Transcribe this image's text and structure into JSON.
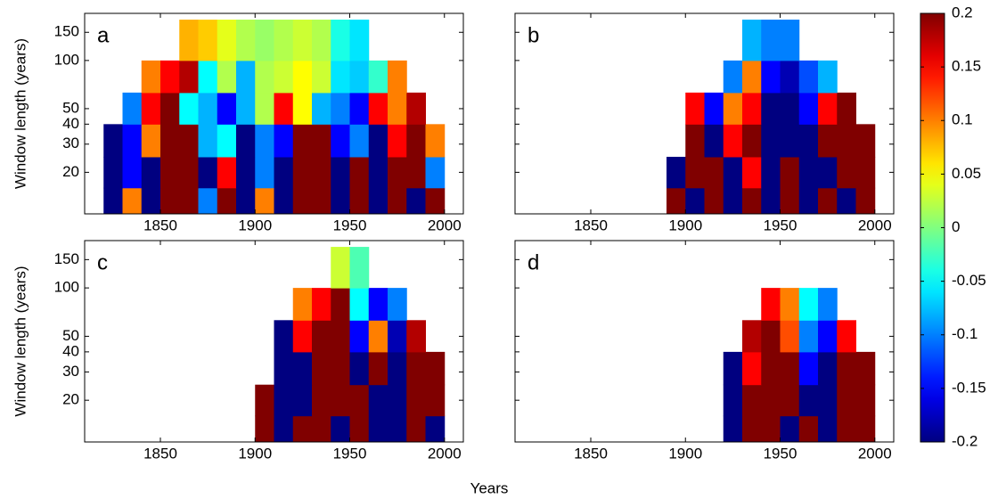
{
  "figure": {
    "xlabel": "Years",
    "colorbar": {
      "clim": [
        -0.2,
        0.2
      ],
      "ticks": [
        0.2,
        0.15,
        0.1,
        0.05,
        0,
        -0.05,
        -0.1,
        -0.15,
        -0.2
      ],
      "colormap": "jet"
    }
  },
  "chart_data": [
    {
      "type": "heatmap",
      "label": "a",
      "ylabel": "Window length (years)",
      "x": [
        1815,
        1825,
        1835,
        1845,
        1855,
        1865,
        1875,
        1885,
        1895,
        1905,
        1915,
        1925,
        1935,
        1945,
        1955,
        1965,
        1975,
        1985,
        1995,
        2005
      ],
      "y_edges": [
        10,
        16,
        25,
        40,
        63,
        100,
        180
      ],
      "values": [
        [
          null,
          -0.2,
          0.1,
          -0.2,
          0.2,
          0.2,
          -0.1,
          0.2,
          -0.2,
          0.1,
          -0.2,
          0.2,
          0.2,
          -0.2,
          0.2,
          -0.2,
          0.2,
          -0.2,
          0.2,
          null
        ],
        [
          null,
          -0.2,
          -0.15,
          -0.2,
          0.2,
          0.2,
          -0.2,
          0.15,
          -0.2,
          -0.1,
          -0.2,
          0.2,
          0.2,
          -0.2,
          0.2,
          -0.2,
          0.2,
          0.2,
          -0.1,
          null
        ],
        [
          null,
          -0.2,
          -0.15,
          0.1,
          0.2,
          0.2,
          -0.08,
          -0.05,
          -0.2,
          -0.1,
          -0.15,
          0.2,
          0.2,
          -0.15,
          -0.1,
          -0.2,
          0.15,
          0.2,
          0.1,
          null
        ],
        [
          null,
          null,
          -0.1,
          0.15,
          0.2,
          -0.05,
          -0.08,
          -0.15,
          -0.08,
          0.02,
          0.15,
          0.05,
          -0.08,
          -0.1,
          -0.15,
          0.15,
          0.1,
          0.18,
          null,
          null
        ],
        [
          null,
          null,
          null,
          0.1,
          0.15,
          0.18,
          -0.05,
          0.02,
          -0.08,
          0.02,
          0.03,
          0.05,
          0.03,
          -0.06,
          -0.07,
          -0.03,
          0.1,
          null,
          null,
          null
        ],
        [
          null,
          null,
          null,
          null,
          null,
          0.08,
          0.07,
          0.04,
          0.02,
          0.01,
          0.02,
          0.03,
          0.02,
          -0.04,
          -0.06,
          null,
          null,
          null,
          null,
          null
        ]
      ],
      "xlim": [
        1810,
        2010
      ],
      "ylim": [
        11,
        197
      ],
      "yscale": "log",
      "xticks": [
        1850,
        1900,
        1950,
        2000
      ],
      "yticks": [
        20,
        30,
        40,
        50,
        100,
        150
      ]
    },
    {
      "type": "heatmap",
      "label": "b",
      "x": [
        1815,
        1825,
        1835,
        1845,
        1855,
        1865,
        1875,
        1885,
        1895,
        1905,
        1915,
        1925,
        1935,
        1945,
        1955,
        1965,
        1975,
        1985,
        1995,
        2005
      ],
      "y_edges": [
        10,
        16,
        25,
        40,
        63,
        100,
        180
      ],
      "values": [
        [
          null,
          null,
          null,
          null,
          null,
          null,
          null,
          null,
          0.2,
          -0.2,
          0.2,
          -0.2,
          0.2,
          -0.2,
          0.2,
          -0.2,
          0.2,
          -0.2,
          0.2,
          null
        ],
        [
          null,
          null,
          null,
          null,
          null,
          null,
          null,
          null,
          -0.2,
          0.2,
          0.2,
          -0.2,
          0.15,
          -0.2,
          0.2,
          -0.2,
          -0.2,
          0.2,
          0.2,
          null
        ],
        [
          null,
          null,
          null,
          null,
          null,
          null,
          null,
          null,
          null,
          0.2,
          -0.2,
          0.15,
          0.2,
          -0.2,
          -0.2,
          -0.2,
          0.2,
          0.2,
          0.2,
          null
        ],
        [
          null,
          null,
          null,
          null,
          null,
          null,
          null,
          null,
          null,
          0.15,
          -0.15,
          0.1,
          0.15,
          -0.2,
          -0.2,
          -0.15,
          0.15,
          0.2,
          null,
          null
        ],
        [
          null,
          null,
          null,
          null,
          null,
          null,
          null,
          null,
          null,
          null,
          null,
          -0.1,
          0.1,
          -0.15,
          -0.18,
          -0.12,
          -0.08,
          null,
          null,
          null
        ],
        [
          null,
          null,
          null,
          null,
          null,
          null,
          null,
          null,
          null,
          null,
          null,
          null,
          -0.08,
          -0.1,
          -0.1,
          null,
          null,
          null,
          null,
          null
        ]
      ],
      "xlim": [
        1810,
        2010
      ],
      "ylim": [
        11,
        197
      ],
      "yscale": "log",
      "xticks": [
        1850,
        1900,
        1950,
        2000
      ],
      "yticks": [
        20,
        30,
        40,
        50,
        100,
        150
      ]
    },
    {
      "type": "heatmap",
      "label": "c",
      "ylabel": "Window length (years)",
      "x": [
        1815,
        1825,
        1835,
        1845,
        1855,
        1865,
        1875,
        1885,
        1895,
        1905,
        1915,
        1925,
        1935,
        1945,
        1955,
        1965,
        1975,
        1985,
        1995,
        2005
      ],
      "y_edges": [
        10,
        16,
        25,
        40,
        63,
        100,
        180
      ],
      "values": [
        [
          null,
          null,
          null,
          null,
          null,
          null,
          null,
          null,
          null,
          0.2,
          -0.2,
          0.2,
          0.2,
          -0.2,
          0.2,
          -0.2,
          -0.2,
          0.2,
          -0.2,
          null
        ],
        [
          null,
          null,
          null,
          null,
          null,
          null,
          null,
          null,
          null,
          0.2,
          -0.2,
          -0.2,
          0.2,
          0.2,
          0.2,
          -0.2,
          -0.2,
          0.2,
          0.2,
          null
        ],
        [
          null,
          null,
          null,
          null,
          null,
          null,
          null,
          null,
          null,
          null,
          -0.2,
          -0.2,
          0.2,
          0.2,
          -0.2,
          0.2,
          -0.2,
          0.2,
          0.2,
          null
        ],
        [
          null,
          null,
          null,
          null,
          null,
          null,
          null,
          null,
          null,
          null,
          -0.2,
          0.15,
          0.2,
          0.2,
          -0.15,
          0.1,
          -0.18,
          0.18,
          null,
          null
        ],
        [
          null,
          null,
          null,
          null,
          null,
          null,
          null,
          null,
          null,
          null,
          null,
          0.1,
          0.15,
          0.2,
          -0.05,
          -0.15,
          -0.1,
          null,
          null,
          null
        ],
        [
          null,
          null,
          null,
          null,
          null,
          null,
          null,
          null,
          null,
          null,
          null,
          null,
          null,
          0.03,
          -0.02,
          null,
          null,
          null,
          null,
          null
        ]
      ],
      "xlim": [
        1810,
        2010
      ],
      "ylim": [
        11,
        197
      ],
      "yscale": "log",
      "xticks": [
        1850,
        1900,
        1950,
        2000
      ],
      "yticks": [
        20,
        30,
        40,
        50,
        100,
        150
      ]
    },
    {
      "type": "heatmap",
      "label": "d",
      "x": [
        1815,
        1825,
        1835,
        1845,
        1855,
        1865,
        1875,
        1885,
        1895,
        1905,
        1915,
        1925,
        1935,
        1945,
        1955,
        1965,
        1975,
        1985,
        1995,
        2005
      ],
      "y_edges": [
        10,
        16,
        25,
        40,
        63,
        100,
        180
      ],
      "values": [
        [
          null,
          null,
          null,
          null,
          null,
          null,
          null,
          null,
          null,
          null,
          null,
          -0.2,
          0.2,
          0.2,
          -0.2,
          0.2,
          -0.2,
          0.2,
          0.2,
          null
        ],
        [
          null,
          null,
          null,
          null,
          null,
          null,
          null,
          null,
          null,
          null,
          null,
          -0.2,
          0.2,
          0.2,
          0.2,
          -0.2,
          -0.2,
          0.2,
          0.2,
          null
        ],
        [
          null,
          null,
          null,
          null,
          null,
          null,
          null,
          null,
          null,
          null,
          null,
          -0.2,
          0.15,
          0.2,
          0.2,
          -0.15,
          -0.2,
          0.2,
          0.2,
          null
        ],
        [
          null,
          null,
          null,
          null,
          null,
          null,
          null,
          null,
          null,
          null,
          null,
          null,
          0.18,
          0.2,
          0.12,
          -0.1,
          -0.15,
          0.15,
          null,
          null
        ],
        [
          null,
          null,
          null,
          null,
          null,
          null,
          null,
          null,
          null,
          null,
          null,
          null,
          null,
          0.15,
          0.1,
          -0.05,
          -0.1,
          null,
          null,
          null
        ],
        [
          null,
          null,
          null,
          null,
          null,
          null,
          null,
          null,
          null,
          null,
          null,
          null,
          null,
          null,
          null,
          null,
          null,
          null,
          null,
          null
        ]
      ],
      "xlim": [
        1810,
        2010
      ],
      "ylim": [
        11,
        197
      ],
      "yscale": "log",
      "xticks": [
        1850,
        1900,
        1950,
        2000
      ],
      "yticks": [
        20,
        30,
        40,
        50,
        100,
        150
      ]
    }
  ]
}
